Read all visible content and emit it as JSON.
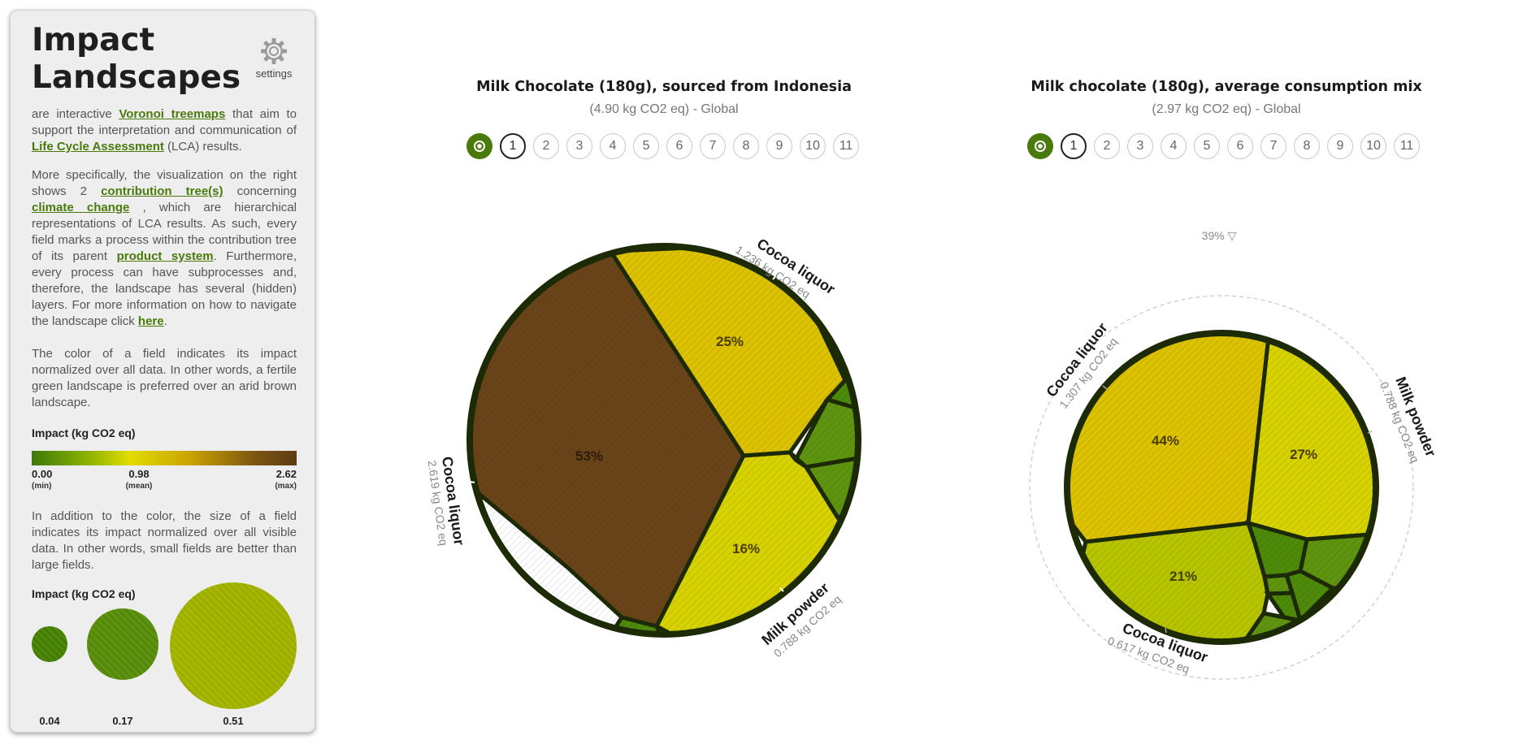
{
  "sidebar": {
    "title_line1": "Impact",
    "title_line2": "Landscapes",
    "settings_label": "settings",
    "intro": {
      "t1": "are interactive ",
      "link1": "Voronoi treemaps",
      "t2": " that aim to support the interpretation and communication of ",
      "link2": "Life Cycle Assessment",
      "t3": " (LCA) results."
    },
    "para2": {
      "t1": "More specifically, the visualization on the right shows 2 ",
      "link1": "contribution tree(s)",
      "t2": " concerning ",
      "link2": "climate change",
      "t3": " , which are hierarchical representations of LCA results. As such, every field marks a process within the contribution tree of its parent ",
      "link3": "product system",
      "t4": ". Furthermore, every process can have subprocesses and, therefore, the landscape has several (hidden) layers. For more information on how to navigate the landscape click ",
      "link4": "here",
      "t5": "."
    },
    "para3": "The color of a field indicates its impact normalized over all data. In other words, a fertile green landscape is preferred over an arid brown landscape.",
    "legend_color": {
      "header": "Impact (kg CO2 eq)",
      "min_value": "0.00",
      "min_label": "(min)",
      "mean_value": "0.98",
      "mean_label": "(mean)",
      "max_value": "2.62",
      "max_label": "(max)"
    },
    "para4": "In addition to the color, the size of a field indicates its impact normalized over all visible data. In other words, small fields are better than large fields.",
    "legend_size": {
      "header": "Impact (kg CO2 eq)",
      "values": [
        "0.04",
        "0.17",
        "0.51"
      ]
    }
  },
  "colors": {
    "accent": "#4a7a0c",
    "border": "#1c2a06",
    "brown": "#6a4419",
    "yellow": "#dcc200",
    "yellow_light": "#d7d200",
    "yellow_green": "#b7c400",
    "green": "#4e8a0a",
    "green_mid": "#5f9410"
  },
  "charts": [
    {
      "title": "Milk Chocolate (180g), sourced from Indonesia",
      "subtitle": "(4.90 kg CO2 eq) - Global",
      "steps": [
        "1",
        "2",
        "3",
        "4",
        "5",
        "6",
        "7",
        "8",
        "9",
        "10",
        "11"
      ],
      "active_step": "1",
      "percent_labels": [
        "53%",
        "25%",
        "16%"
      ],
      "outer_labels": [
        {
          "name": "Cocoa liquor",
          "value": "2.619 kg CO2 eq"
        },
        {
          "name": "Cocoa liquor",
          "value": "1.236 kg CO2 eq"
        },
        {
          "name": "Milk powder",
          "value": "0.788 kg CO2 eq"
        }
      ]
    },
    {
      "title": "Milk chocolate (180g), average consumption mix",
      "subtitle": "(2.97 kg CO2 eq) - Global",
      "steps": [
        "1",
        "2",
        "3",
        "4",
        "5",
        "6",
        "7",
        "8",
        "9",
        "10",
        "11"
      ],
      "active_step": "1",
      "scale_label": "39% ▽",
      "percent_labels": [
        "44%",
        "27%",
        "21%"
      ],
      "outer_labels": [
        {
          "name": "Cocoa liquor",
          "value": "1.307 kg CO2 eq"
        },
        {
          "name": "Milk powder",
          "value": "0.788 kg CO2 eq"
        },
        {
          "name": "Cocoa liquor",
          "value": "0.617 kg CO2 eq"
        }
      ]
    }
  ]
}
